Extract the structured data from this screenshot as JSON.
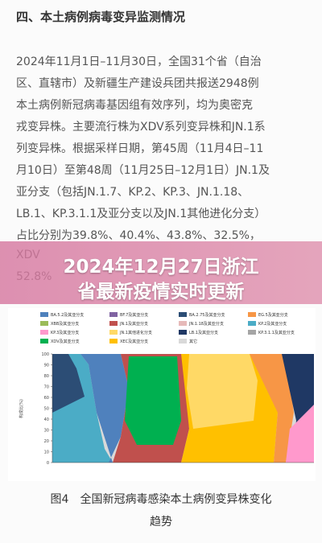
{
  "heading": "四、本土病例病毒变异监测情况",
  "paragraph": [
    "2024年11月1日–11月30日，全国31个省（自治",
    "区、直辖市）及新疆生产建设兵团共报送2948例",
    "本土病例新冠病毒基因组有效序列，均为奥密克",
    "戎变异株。主要流行株为XDV系列变异株和JN.1系",
    "列变异株。根据采样日期，第45周（11月4日–11",
    "月10日）至第48周（11月25日–12月1日）JN.1及",
    "亚分支（包括JN.1.7、KP.2、KP.3、JN.1.18、",
    "LB.1、KP.3.1.1及亚分支以及JN.1其他进化分支）",
    "占比分别为39.8%、40.4%、43.8%、32.5%，",
    "XDV",
    "52.8%"
  ],
  "banner": [
    "2024年12月27日浙江",
    "省最新疫情实时更新"
  ],
  "figure": {
    "legend": [
      {
        "label": "BA.5.2及其亚分支",
        "color": "#4f81bd"
      },
      {
        "label": "BF.7及其亚分支",
        "color": "#8064a2"
      },
      {
        "label": "BA.2.75及其亚分支",
        "color": "#2c4d75"
      },
      {
        "label": "EG.5及其亚分支",
        "color": "#f79646"
      },
      {
        "label": "XBB及其亚分支",
        "color": "#9bbb59"
      },
      {
        "label": "JN.1及其亚分支",
        "color": "#c0504d"
      },
      {
        "label": "JN.1.18及其亚分支",
        "color": "#e6b9b8"
      },
      {
        "label": "KP.2及其亚分支",
        "color": "#4bacc6"
      },
      {
        "label": "KP.3及其亚分支",
        "color": "#ff99cc"
      },
      {
        "label": "JN.1其他进化分支",
        "color": "#ffd966"
      },
      {
        "label": "LB.1及其亚分支",
        "color": "#1f3864"
      },
      {
        "label": "KP.3.1.1及其亚分支",
        "color": "#a5a5a5"
      },
      {
        "label": "XDV及其亚分支",
        "color": "#00b050"
      },
      {
        "label": "XEC及其亚分支",
        "color": "#ffc000"
      },
      {
        "label": "其它",
        "color": "#d9d9d9"
      }
    ],
    "y_axis_label": "构成比(%)",
    "yticks": [
      "100",
      "90",
      "80",
      "70",
      "60",
      "50",
      "40",
      "30",
      "20",
      "10",
      "0"
    ]
  },
  "caption": [
    "图4　全国新冠病毒感染本土病例变异株变化",
    "趋势"
  ]
}
